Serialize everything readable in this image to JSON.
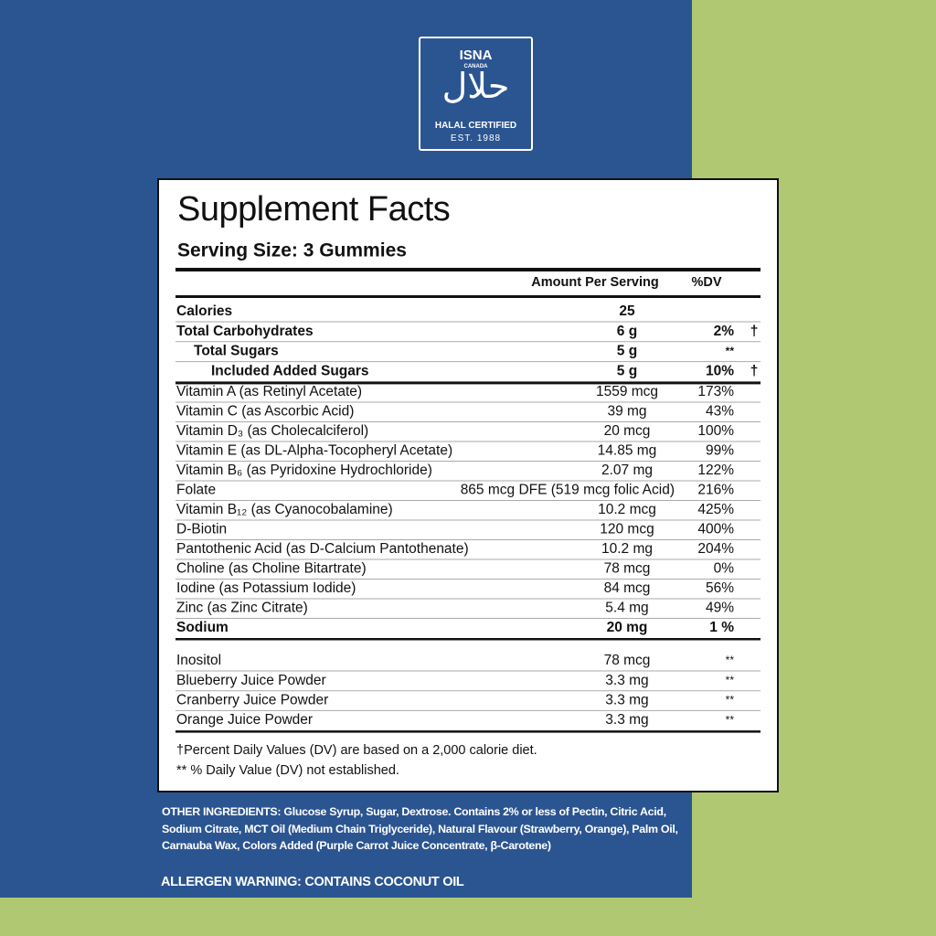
{
  "logo": {
    "brand": "ISNA",
    "country": "CANADA",
    "arabic": "حلال",
    "certification": "HALAL CERTIFIED",
    "established": "EST. 1988"
  },
  "facts": {
    "title": "Supplement Facts",
    "serving_size": "Serving Size: 3 Gummies",
    "header": {
      "amount": "Amount Per Serving",
      "dv": "%DV"
    },
    "groups": [
      [
        {
          "name": "Calories",
          "amount": "25",
          "bold": true
        },
        {
          "name": "Total Carbohydrates",
          "amount": "6 g",
          "dv": "2%",
          "note": "†",
          "bold": true
        },
        {
          "name": "Total Sugars",
          "amount": "5 g",
          "dv": "**",
          "bold": true,
          "indent": 1
        },
        {
          "name": "Included Added Sugars",
          "amount": "5 g",
          "dv": "10%",
          "note": "†",
          "bold": true,
          "indent": 2
        }
      ],
      [
        {
          "name": "Vitamin A (as Retinyl Acetate)",
          "amount": "1559 mcg",
          "dv": "173%"
        },
        {
          "name": "Vitamin C (as Ascorbic Acid)",
          "amount": "39 mg",
          "dv": "43%"
        },
        {
          "name": "Vitamin D₃ (as Cholecalciferol)",
          "amount": "20 mcg",
          "dv": "100%"
        },
        {
          "name": "Vitamin E (as DL-Alpha-Tocopheryl Acetate)",
          "amount": "14.85 mg",
          "dv": "99%"
        },
        {
          "name": "Vitamin B₆ (as Pyridoxine Hydrochloride)",
          "amount": "2.07 mg",
          "dv": "122%"
        },
        {
          "name": "Folate",
          "amount": "865 mcg DFE (519 mcg folic Acid)",
          "dv": "216%"
        },
        {
          "name": "Vitamin B₁₂ (as Cyanocobalamine)",
          "amount": "10.2 mcg",
          "dv": "425%"
        },
        {
          "name": "D-Biotin",
          "amount": "120 mcg",
          "dv": "400%"
        },
        {
          "name": "Pantothenic Acid (as D-Calcium Pantothenate)",
          "amount": "10.2 mg",
          "dv": "204%"
        },
        {
          "name": "Choline (as Choline Bitartrate)",
          "amount": "78 mcg",
          "dv": "0%"
        },
        {
          "name": "Iodine (as Potassium Iodide)",
          "amount": "84 mcg",
          "dv": "56%"
        },
        {
          "name": "Zinc (as Zinc Citrate)",
          "amount": "5.4 mg",
          "dv": "49%"
        },
        {
          "name": "Sodium",
          "amount": "20 mg",
          "dv": "1 %",
          "bold": true
        }
      ],
      [
        {
          "name": "Inositol",
          "amount": "78 mcg",
          "dv": "**"
        },
        {
          "name": "Blueberry Juice Powder",
          "amount": "3.3 mg",
          "dv": "**"
        },
        {
          "name": "Cranberry Juice Powder",
          "amount": "3.3 mg",
          "dv": "**"
        },
        {
          "name": "Orange Juice Powder",
          "amount": "3.3 mg",
          "dv": "**"
        }
      ]
    ],
    "footnotes": [
      "†Percent Daily Values (DV) are based on a 2,000 calorie diet.",
      "** % Daily Value (DV) not established."
    ]
  },
  "other_ingredients": "OTHER INGREDIENTS: Glucose Syrup, Sugar, Dextrose. Contains 2% or less of Pectin, Citric Acid, Sodium Citrate, MCT Oil (Medium Chain Triglyceride), Natural Flavour (Strawberry, Orange), Palm Oil, Carnauba Wax, Colors Added (Purple Carrot Juice Concentrate, β-Carotene)",
  "allergen_warning": "ALLERGEN WARNING: CONTAINS COCONUT OIL"
}
